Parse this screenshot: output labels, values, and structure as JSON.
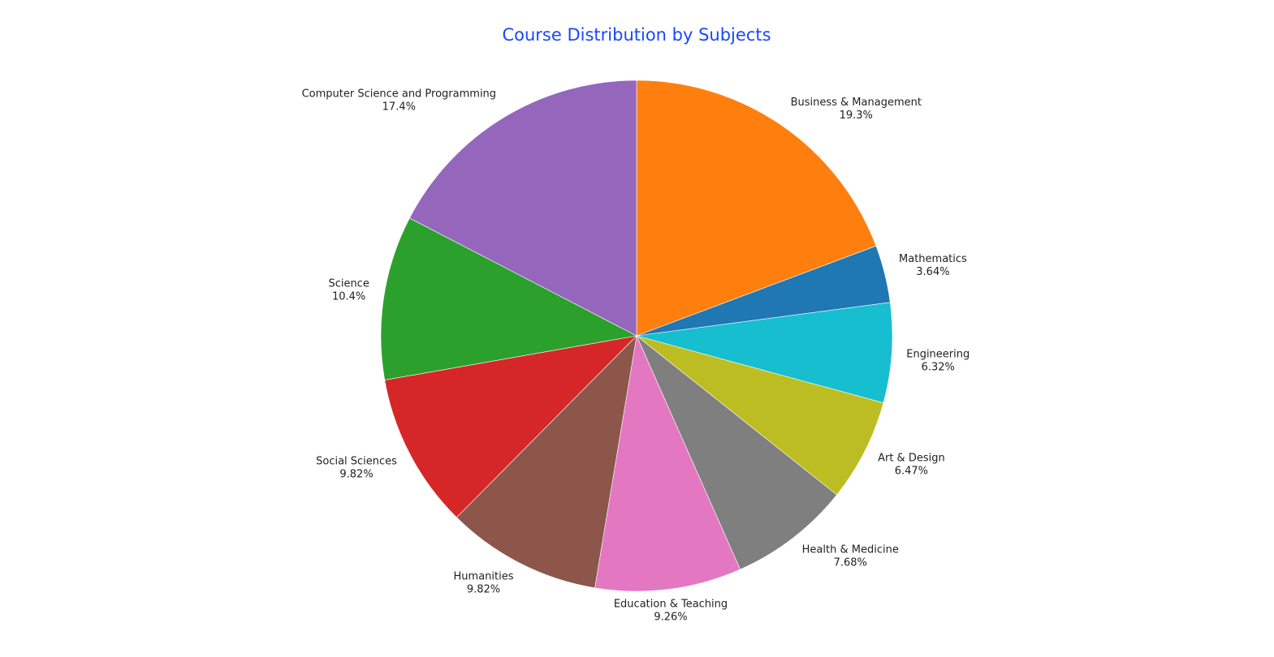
{
  "chart_data": {
    "type": "pie",
    "title": "Course Distribution by Subjects",
    "title_color": "#1a47ff",
    "direction": "clockwise",
    "start": "top",
    "slices": [
      {
        "name": "Business & Management",
        "value": 19.3,
        "label": "19.3%",
        "color": "#ff7f0e"
      },
      {
        "name": "Mathematics",
        "value": 3.64,
        "label": "3.64%",
        "color": "#1f77b4"
      },
      {
        "name": "Engineering",
        "value": 6.32,
        "label": "6.32%",
        "color": "#17becf"
      },
      {
        "name": "Art & Design",
        "value": 6.47,
        "label": "6.47%",
        "color": "#bcbd22"
      },
      {
        "name": "Health & Medicine",
        "value": 7.68,
        "label": "7.68%",
        "color": "#7f7f7f"
      },
      {
        "name": "Education & Teaching",
        "value": 9.26,
        "label": "9.26%",
        "color": "#e377c2"
      },
      {
        "name": "Humanities",
        "value": 9.82,
        "label": "9.82%",
        "color": "#8c564b"
      },
      {
        "name": "Social Sciences",
        "value": 9.82,
        "label": "9.82%",
        "color": "#d62728"
      },
      {
        "name": "Science",
        "value": 10.4,
        "label": "10.4%",
        "color": "#2ca02c"
      },
      {
        "name": "Computer Science and Programming",
        "value": 17.4,
        "label": "17.4%",
        "color": "#9467bd"
      }
    ]
  }
}
